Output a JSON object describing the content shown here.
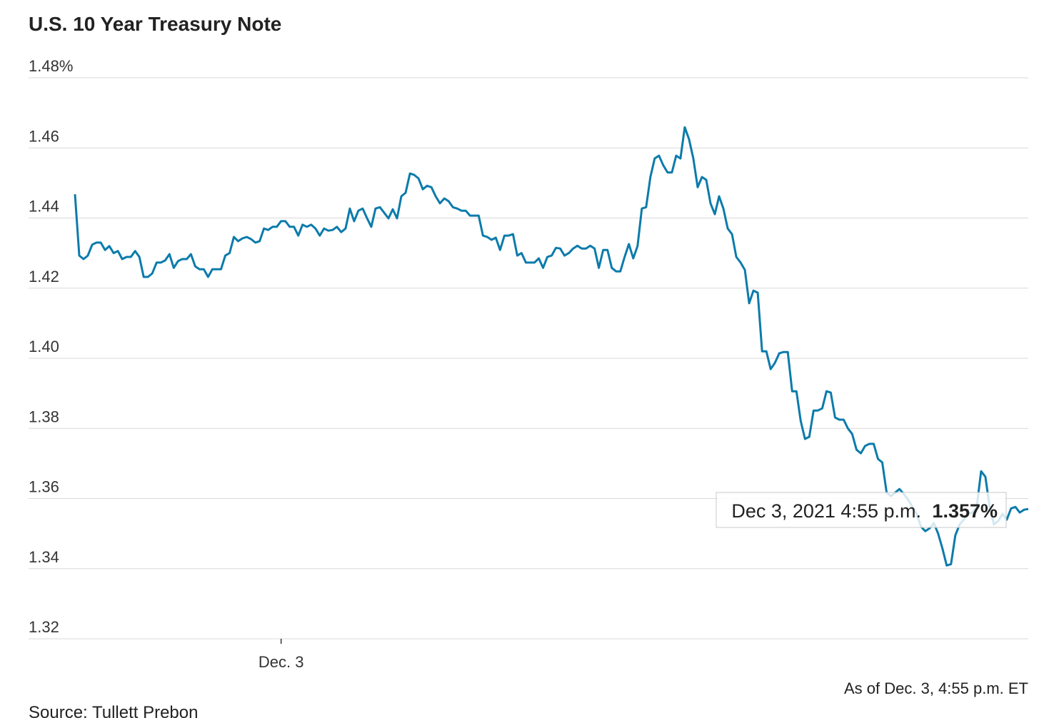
{
  "chart_data": {
    "type": "line",
    "title": "U.S. 10 Year Treasury Note",
    "note": "As of Dec. 3, 4:55 p.m. ET",
    "source": "Source: Tullett Prebon",
    "tooltip_time": "Dec 3, 2021 4:55 p.m.",
    "tooltip_value": "1.357%",
    "color": "#0b7bab",
    "grid": true,
    "ylim": [
      1.32,
      1.48
    ],
    "yticks": [
      1.32,
      1.34,
      1.36,
      1.38,
      {
        "value": 1.4,
        "label": "1.40"
      },
      1.42,
      1.44,
      1.46,
      {
        "value": 1.48,
        "label": "1.48%"
      }
    ],
    "categories": [
      null,
      null,
      null,
      null,
      null,
      null,
      null,
      null,
      null,
      null,
      null,
      null,
      null,
      null,
      null,
      null,
      null,
      null,
      null,
      null,
      null,
      null,
      null,
      null,
      null,
      null,
      null,
      null,
      null,
      null,
      null,
      null,
      null,
      null,
      null,
      null,
      null,
      null,
      null,
      null,
      null,
      null,
      null,
      null,
      null,
      null,
      null,
      null,
      "Dec. 3",
      null,
      null,
      null,
      null,
      null,
      null,
      null,
      null,
      null,
      null,
      null,
      null,
      null,
      null,
      null,
      null,
      null,
      null,
      null,
      null,
      null,
      null,
      null,
      null,
      null,
      null,
      null,
      null,
      null,
      null,
      null,
      null,
      null,
      null,
      null,
      null,
      null,
      null,
      null,
      null,
      null,
      null,
      null,
      null,
      null,
      null,
      null,
      null,
      null,
      null,
      null,
      null,
      null,
      null,
      null,
      null,
      null,
      null,
      null,
      null,
      null,
      null,
      null,
      null,
      null,
      null,
      null,
      null,
      null,
      null,
      null,
      null,
      null,
      null,
      null,
      null,
      null,
      null,
      null,
      null,
      null,
      null,
      null,
      null,
      null,
      null,
      null,
      null,
      null,
      null,
      null,
      null,
      null,
      null,
      null,
      null,
      null,
      null,
      null,
      null,
      null,
      null,
      null,
      null,
      null,
      null,
      null,
      null,
      null,
      null,
      null,
      null,
      null,
      null,
      null,
      null,
      null,
      null,
      null,
      null,
      null,
      null,
      null,
      null,
      null,
      null,
      null,
      null,
      null,
      null,
      null,
      null,
      null,
      null,
      null,
      null,
      null,
      null,
      null,
      null,
      null,
      null,
      null,
      null,
      null,
      null,
      null,
      null,
      null,
      null,
      null,
      null,
      null,
      null,
      null,
      null,
      null,
      null,
      null,
      null,
      null,
      null,
      null,
      null,
      null,
      null,
      null,
      null,
      null,
      null,
      null,
      null,
      null,
      null
    ],
    "values": [
      1.4468,
      1.4293,
      1.4283,
      1.4293,
      1.4324,
      1.433,
      1.433,
      1.4309,
      1.432,
      1.43,
      1.4306,
      1.4283,
      1.4289,
      1.4289,
      1.4306,
      1.4289,
      1.4232,
      1.4232,
      1.4242,
      1.4273,
      1.4273,
      1.4279,
      1.4297,
      1.4258,
      1.4277,
      1.4283,
      1.4283,
      1.4297,
      1.4262,
      1.4254,
      1.4254,
      1.4232,
      1.4254,
      1.4254,
      1.4254,
      1.4293,
      1.43,
      1.4346,
      1.4334,
      1.4342,
      1.4346,
      1.434,
      1.433,
      1.4334,
      1.437,
      1.4366,
      1.4375,
      1.4375,
      1.4391,
      1.4391,
      1.4375,
      1.4375,
      1.435,
      1.4381,
      1.4375,
      1.4381,
      1.437,
      1.435,
      1.437,
      1.4364,
      1.4366,
      1.4375,
      1.436,
      1.437,
      1.4427,
      1.4391,
      1.4421,
      1.4427,
      1.44,
      1.4375,
      1.4427,
      1.4431,
      1.4415,
      1.4399,
      1.4425,
      1.4399,
      1.4462,
      1.4472,
      1.4527,
      1.4523,
      1.4513,
      1.4482,
      1.4492,
      1.4488,
      1.4462,
      1.4442,
      1.4456,
      1.4448,
      1.4431,
      1.4427,
      1.4421,
      1.4421,
      1.4407,
      1.4407,
      1.4407,
      1.435,
      1.4346,
      1.4338,
      1.4344,
      1.4309,
      1.435,
      1.435,
      1.4354,
      1.4293,
      1.43,
      1.4273,
      1.4273,
      1.4273,
      1.4285,
      1.4258,
      1.4289,
      1.4293,
      1.4315,
      1.4313,
      1.4293,
      1.43,
      1.4313,
      1.4321,
      1.4313,
      1.4313,
      1.4321,
      1.4313,
      1.4258,
      1.4309,
      1.4309,
      1.4258,
      1.4248,
      1.4248,
      1.4289,
      1.4326,
      1.4285,
      1.432,
      1.4427,
      1.4431,
      1.4517,
      1.457,
      1.4578,
      1.455,
      1.453,
      1.453,
      1.4578,
      1.457,
      1.4659,
      1.4625,
      1.457,
      1.4488,
      1.4517,
      1.4509,
      1.4442,
      1.4411,
      1.4462,
      1.4427,
      1.437,
      1.4354,
      1.4289,
      1.4273,
      1.4252,
      1.4157,
      1.4193,
      1.4187,
      1.402,
      1.402,
      1.3969,
      1.3987,
      1.4014,
      1.4018,
      1.4018,
      1.3906,
      1.3906,
      1.3821,
      1.377,
      1.3776,
      1.3851,
      1.3851,
      1.3857,
      1.3906,
      1.3902,
      1.3831,
      1.3825,
      1.3825,
      1.38,
      1.3784,
      1.3739,
      1.3729,
      1.375,
      1.3756,
      1.3756,
      1.3713,
      1.3703,
      1.3617,
      1.3607,
      1.3617,
      1.3627,
      1.3613,
      1.3597,
      1.3576,
      1.3556,
      1.352,
      1.3507,
      1.3515,
      1.353,
      1.35,
      1.3458,
      1.3409,
      1.3413,
      1.3495,
      1.3526,
      1.354,
      1.3556,
      1.356,
      1.3576,
      1.3678,
      1.3662,
      1.3576,
      1.3526,
      1.3536,
      1.3556,
      1.354,
      1.3572,
      1.3576,
      1.356,
      1.3568,
      1.357
    ]
  }
}
